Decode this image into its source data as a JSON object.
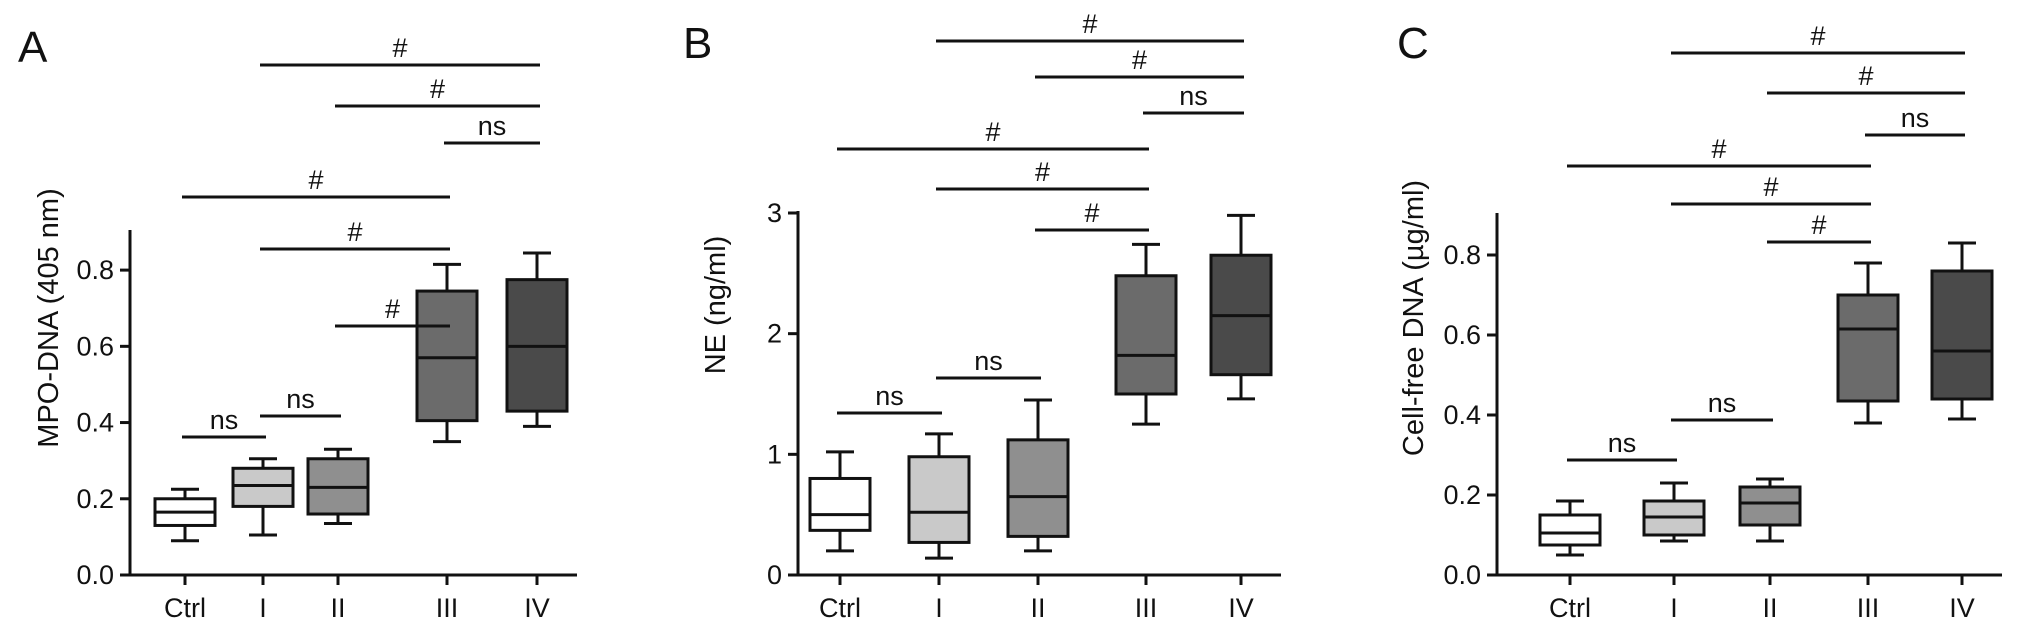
{
  "figure": {
    "background": "#ffffff",
    "box_colors": [
      "#ffffff",
      "#c9c9c9",
      "#8f8f8f",
      "#6b6b6b",
      "#4a4a4a"
    ]
  },
  "chart_data": [
    {
      "type": "box",
      "panel": "A",
      "ylabel": "MPO-DNA (405 nm)",
      "categories": [
        "Ctrl",
        "I",
        "II",
        "III",
        "IV"
      ],
      "ylim": [
        0,
        0.9
      ],
      "yticks": [
        0,
        0.2,
        0.4,
        0.6,
        0.8
      ],
      "ytick_labels": [
        "0.0",
        "0.2",
        "0.4",
        "0.6",
        "0.8"
      ],
      "boxes": [
        {
          "category": "Ctrl",
          "min": 0.09,
          "q1": 0.13,
          "median": 0.165,
          "q3": 0.2,
          "max": 0.225,
          "color": "#ffffff"
        },
        {
          "category": "I",
          "min": 0.105,
          "q1": 0.18,
          "median": 0.235,
          "q3": 0.28,
          "max": 0.305,
          "color": "#c9c9c9"
        },
        {
          "category": "II",
          "min": 0.135,
          "q1": 0.16,
          "median": 0.23,
          "q3": 0.305,
          "max": 0.33,
          "color": "#8f8f8f"
        },
        {
          "category": "III",
          "min": 0.35,
          "q1": 0.405,
          "median": 0.57,
          "q3": 0.745,
          "max": 0.815,
          "color": "#6b6b6b"
        },
        {
          "category": "IV",
          "min": 0.39,
          "q1": 0.43,
          "median": 0.6,
          "q3": 0.775,
          "max": 0.845,
          "color": "#4a4a4a"
        }
      ],
      "comparisons": [
        {
          "from": "Ctrl",
          "to": "I",
          "label": "ns"
        },
        {
          "from": "I",
          "to": "II",
          "label": "ns"
        },
        {
          "from": "II",
          "to": "III",
          "label": "#"
        },
        {
          "from": "I",
          "to": "III",
          "label": "#"
        },
        {
          "from": "Ctrl",
          "to": "III",
          "label": "#"
        },
        {
          "from": "III",
          "to": "IV",
          "label": "ns"
        },
        {
          "from": "II",
          "to": "IV",
          "label": "#"
        },
        {
          "from": "I",
          "to": "IV",
          "label": "#"
        }
      ]
    },
    {
      "type": "box",
      "panel": "B",
      "ylabel": "NE (ng/ml)",
      "categories": [
        "Ctrl",
        "I",
        "II",
        "III",
        "IV"
      ],
      "ylim": [
        0,
        3
      ],
      "yticks": [
        0,
        1,
        2,
        3
      ],
      "ytick_labels": [
        "0",
        "1",
        "2",
        "3"
      ],
      "boxes": [
        {
          "category": "Ctrl",
          "min": 0.2,
          "q1": 0.37,
          "median": 0.5,
          "q3": 0.8,
          "max": 1.02,
          "color": "#ffffff"
        },
        {
          "category": "I",
          "min": 0.14,
          "q1": 0.27,
          "median": 0.52,
          "q3": 0.98,
          "max": 1.17,
          "color": "#c9c9c9"
        },
        {
          "category": "II",
          "min": 0.2,
          "q1": 0.32,
          "median": 0.65,
          "q3": 1.12,
          "max": 1.45,
          "color": "#8f8f8f"
        },
        {
          "category": "III",
          "min": 1.25,
          "q1": 1.5,
          "median": 1.82,
          "q3": 2.48,
          "max": 2.74,
          "color": "#6b6b6b"
        },
        {
          "category": "IV",
          "min": 1.46,
          "q1": 1.66,
          "median": 2.15,
          "q3": 2.65,
          "max": 2.98,
          "color": "#4a4a4a"
        }
      ],
      "comparisons": [
        {
          "from": "Ctrl",
          "to": "I",
          "label": "ns"
        },
        {
          "from": "I",
          "to": "II",
          "label": "ns"
        },
        {
          "from": "II",
          "to": "III",
          "label": "#"
        },
        {
          "from": "I",
          "to": "III",
          "label": "#"
        },
        {
          "from": "Ctrl",
          "to": "III",
          "label": "#"
        },
        {
          "from": "III",
          "to": "IV",
          "label": "ns"
        },
        {
          "from": "II",
          "to": "IV",
          "label": "#"
        },
        {
          "from": "I",
          "to": "IV",
          "label": "#"
        }
      ]
    },
    {
      "type": "box",
      "panel": "C",
      "ylabel": "Cell-free DNA (µg/ml)",
      "categories": [
        "Ctrl",
        "I",
        "II",
        "III",
        "IV"
      ],
      "ylim": [
        0,
        0.9
      ],
      "yticks": [
        0,
        0.2,
        0.4,
        0.6,
        0.8
      ],
      "ytick_labels": [
        "0.0",
        "0.2",
        "0.4",
        "0.6",
        "0.8"
      ],
      "boxes": [
        {
          "category": "Ctrl",
          "min": 0.05,
          "q1": 0.075,
          "median": 0.105,
          "q3": 0.15,
          "max": 0.185,
          "color": "#ffffff"
        },
        {
          "category": "I",
          "min": 0.085,
          "q1": 0.1,
          "median": 0.145,
          "q3": 0.185,
          "max": 0.23,
          "color": "#c9c9c9"
        },
        {
          "category": "II",
          "min": 0.085,
          "q1": 0.125,
          "median": 0.18,
          "q3": 0.22,
          "max": 0.24,
          "color": "#8f8f8f"
        },
        {
          "category": "III",
          "min": 0.38,
          "q1": 0.435,
          "median": 0.615,
          "q3": 0.7,
          "max": 0.78,
          "color": "#6b6b6b"
        },
        {
          "category": "IV",
          "min": 0.39,
          "q1": 0.44,
          "median": 0.56,
          "q3": 0.76,
          "max": 0.83,
          "color": "#4a4a4a"
        }
      ],
      "comparisons": [
        {
          "from": "Ctrl",
          "to": "I",
          "label": "ns"
        },
        {
          "from": "I",
          "to": "II",
          "label": "ns"
        },
        {
          "from": "II",
          "to": "III",
          "label": "#"
        },
        {
          "from": "I",
          "to": "III",
          "label": "#"
        },
        {
          "from": "Ctrl",
          "to": "III",
          "label": "#"
        },
        {
          "from": "III",
          "to": "IV",
          "label": "ns"
        },
        {
          "from": "II",
          "to": "IV",
          "label": "#"
        },
        {
          "from": "I",
          "to": "IV",
          "label": "#"
        }
      ]
    }
  ]
}
